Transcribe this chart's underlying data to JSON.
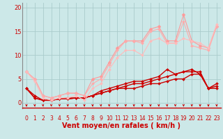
{
  "bg_color": "#cce8e8",
  "grid_color": "#aacccc",
  "xlabel": "Vent moyen/en rafales ( km/h )",
  "ylabel_ticks": [
    0,
    5,
    10,
    15,
    20
  ],
  "xlim": [
    -0.5,
    23.5
  ],
  "ylim": [
    -1.2,
    21
  ],
  "xticks": [
    0,
    1,
    2,
    3,
    4,
    5,
    6,
    7,
    8,
    9,
    10,
    11,
    12,
    13,
    14,
    15,
    16,
    17,
    18,
    19,
    20,
    21,
    22,
    23
  ],
  "series": [
    {
      "x": [
        0,
        1,
        2,
        3,
        4,
        5,
        6,
        7,
        8,
        9,
        10,
        11,
        12,
        13,
        14,
        15,
        16,
        17,
        18,
        19,
        20,
        21,
        22,
        23
      ],
      "y": [
        3,
        1,
        0.5,
        0.5,
        0.8,
        1,
        1,
        1,
        1.5,
        2,
        2.5,
        3,
        3,
        3,
        3.5,
        4,
        4,
        4.5,
        5,
        5,
        6,
        6,
        3,
        3
      ],
      "color": "#cc0000",
      "marker": "D",
      "lw": 1.0,
      "ms": 2.0
    },
    {
      "x": [
        0,
        1,
        2,
        3,
        4,
        5,
        6,
        7,
        8,
        9,
        10,
        11,
        12,
        13,
        14,
        15,
        16,
        17,
        18,
        19,
        20,
        21,
        22,
        23
      ],
      "y": [
        3,
        1,
        0.5,
        0.5,
        0.8,
        0.8,
        1,
        1,
        1.5,
        2,
        2.5,
        3,
        3.5,
        4,
        4,
        4.5,
        5,
        5.5,
        6,
        6.5,
        6.5,
        6.5,
        3,
        3.5
      ],
      "color": "#cc0000",
      "marker": "D",
      "lw": 1.0,
      "ms": 2.0
    },
    {
      "x": [
        0,
        1,
        2,
        3,
        4,
        5,
        6,
        7,
        8,
        9,
        10,
        11,
        12,
        13,
        14,
        15,
        16,
        17,
        18,
        19,
        20,
        21,
        22,
        23
      ],
      "y": [
        3,
        1.5,
        0.5,
        0.5,
        0.8,
        0.8,
        1,
        1,
        1.5,
        2.5,
        3,
        3.5,
        4,
        4.5,
        4.5,
        5,
        5.5,
        7,
        6,
        6.5,
        7,
        6,
        3,
        4
      ],
      "color": "#cc0000",
      "marker": "D",
      "lw": 1.0,
      "ms": 2.0
    },
    {
      "x": [
        0,
        1,
        2,
        3,
        4,
        5,
        6,
        7,
        8,
        9,
        10,
        11,
        12,
        13,
        14,
        15,
        16,
        17,
        18,
        19,
        20,
        21,
        22,
        23
      ],
      "y": [
        6.5,
        5,
        1.5,
        1,
        1.5,
        2,
        2,
        1.5,
        5,
        5.5,
        8.5,
        11.5,
        13,
        13,
        13,
        15.5,
        16,
        13,
        13,
        18.5,
        13,
        12,
        11.5,
        16
      ],
      "color": "#ff9999",
      "marker": "D",
      "lw": 0.8,
      "ms": 2.5
    },
    {
      "x": [
        0,
        1,
        2,
        3,
        4,
        5,
        6,
        7,
        8,
        9,
        10,
        11,
        12,
        13,
        14,
        15,
        16,
        17,
        18,
        19,
        20,
        21,
        22,
        23
      ],
      "y": [
        6.5,
        5,
        1.5,
        1,
        1.5,
        2,
        2,
        1.5,
        4,
        5,
        8,
        11,
        13,
        13,
        12.5,
        15,
        15.5,
        12.5,
        12.5,
        17,
        12,
        11.5,
        11,
        16
      ],
      "color": "#ffaaaa",
      "marker": "D",
      "lw": 0.8,
      "ms": 2.0
    },
    {
      "x": [
        0,
        1,
        2,
        3,
        4,
        5,
        6,
        7,
        8,
        9,
        10,
        11,
        12,
        13,
        14,
        15,
        16,
        17,
        18,
        19,
        20,
        21,
        22,
        23
      ],
      "y": [
        6.5,
        4.5,
        1,
        0.5,
        1,
        1,
        1.5,
        0.5,
        3,
        4,
        7,
        9.5,
        11,
        11,
        10,
        13,
        13.5,
        12.5,
        12.5,
        13.5,
        13,
        12.5,
        11.5,
        16.5
      ],
      "color": "#ffbbbb",
      "marker": "D",
      "lw": 0.8,
      "ms": 2.0
    }
  ],
  "arrow_color": "#cc0000",
  "tick_fontsize": 5.5,
  "xlabel_fontsize": 7,
  "ylabel_fontsize": 6
}
